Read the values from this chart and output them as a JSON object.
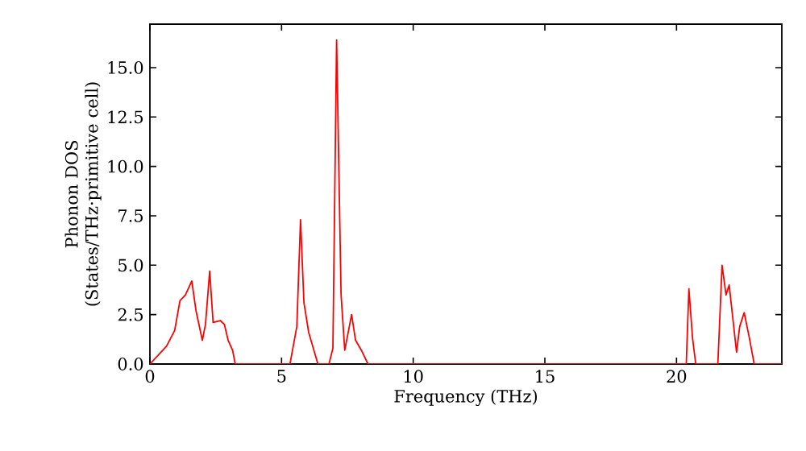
{
  "chart_data": {
    "type": "line",
    "xlabel": "Frequency (THz)",
    "ylabel": "Phonon DOS (States/THz·primitive cell)",
    "xlim": [
      0,
      24
    ],
    "ylim": [
      0,
      17.2
    ],
    "xticks": [
      0,
      5,
      10,
      15,
      20
    ],
    "yticks": [
      {
        "value": 0,
        "label": "0.0"
      },
      {
        "value": 2.5,
        "label": "2.5"
      },
      {
        "value": 5,
        "label": "5.0"
      },
      {
        "value": 7.5,
        "label": "7.5"
      },
      {
        "value": 10,
        "label": "10.0"
      },
      {
        "value": 12.5,
        "label": "12.5"
      },
      {
        "value": 15,
        "label": "15.0"
      }
    ],
    "grid": false,
    "marker": "none",
    "line_style": "solid",
    "series": [
      {
        "color": "#ff0000",
        "x": [
          0,
          0.63,
          0.94,
          1.14,
          1.35,
          1.59,
          1.75,
          1.99,
          2.11,
          2.27,
          2.4,
          2.67,
          2.83,
          2.97,
          3.14,
          3.24,
          5.32,
          5.58,
          5.72,
          5.85,
          6.03,
          6.38,
          6.8,
          6.95,
          7.09,
          7.26,
          7.4,
          7.66,
          7.81,
          8.07,
          8.28,
          20.37,
          20.47,
          20.61,
          20.73,
          21.57,
          21.73,
          21.88,
          22.0,
          22.28,
          22.4,
          22.57,
          22.77,
          22.95,
          24
        ],
        "values": [
          0,
          0.9,
          1.7,
          3.2,
          3.5,
          4.2,
          2.7,
          1.2,
          2.0,
          4.7,
          2.1,
          2.2,
          2.0,
          1.2,
          0.7,
          0,
          0,
          1.9,
          7.3,
          3.1,
          1.6,
          0,
          0,
          0.8,
          16.4,
          3.5,
          0.7,
          2.5,
          1.2,
          0.6,
          0,
          0,
          3.8,
          1.3,
          0,
          0,
          5.0,
          3.5,
          4.0,
          0.6,
          1.9,
          2.6,
          1.3,
          0,
          0
        ]
      }
    ]
  }
}
